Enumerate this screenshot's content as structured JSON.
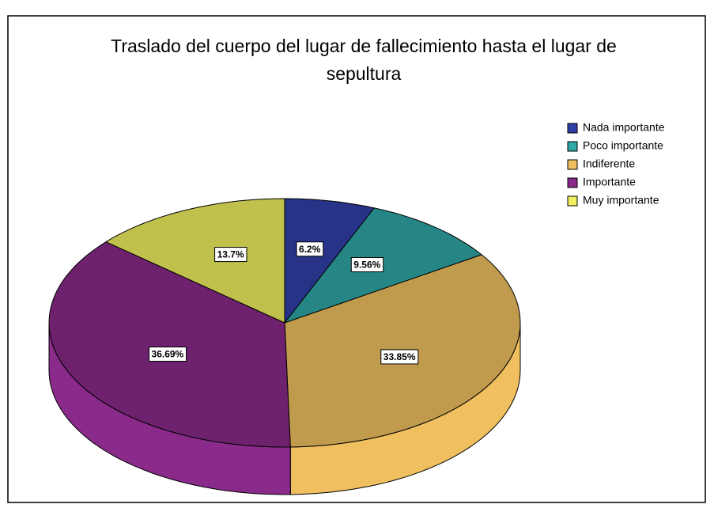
{
  "chart_data": {
    "type": "pie",
    "title": "Traslado del cuerpo del lugar de fallecimiento hasta el lugar de sepultura",
    "categories": [
      "Nada importante",
      "Poco importante",
      "Indiferente",
      "Importante",
      "Muy importante"
    ],
    "values": [
      6.2,
      9.56,
      33.85,
      36.69,
      13.7
    ],
    "value_labels": [
      "6.2%",
      "9.56%",
      "33.85%",
      "36.69%",
      "13.7%"
    ],
    "colors": [
      "#3040a8",
      "#30a8a8",
      "#f0c060",
      "#8a2a8a",
      "#f0f060"
    ],
    "legend": "right"
  }
}
